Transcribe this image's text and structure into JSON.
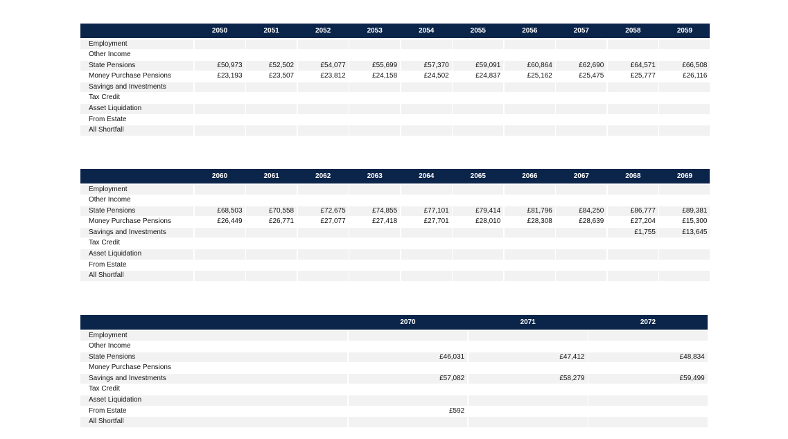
{
  "row_labels": [
    "Employment",
    "Other Income",
    "State Pensions",
    "Money Purchase Pensions",
    "Savings and Investments",
    "Tax Credit",
    "Asset Liquidation",
    "From Estate",
    "All Shortfall"
  ],
  "tables": [
    {
      "years": [
        "2050",
        "2051",
        "2052",
        "2053",
        "2054",
        "2055",
        "2056",
        "2057",
        "2058",
        "2059"
      ],
      "rows": [
        [
          "",
          "",
          "",
          "",
          "",
          "",
          "",
          "",
          "",
          ""
        ],
        [
          "",
          "",
          "",
          "",
          "",
          "",
          "",
          "",
          "",
          ""
        ],
        [
          "£50,973",
          "£52,502",
          "£54,077",
          "£55,699",
          "£57,370",
          "£59,091",
          "£60,864",
          "£62,690",
          "£64,571",
          "£66,508"
        ],
        [
          "£23,193",
          "£23,507",
          "£23,812",
          "£24,158",
          "£24,502",
          "£24,837",
          "£25,162",
          "£25,475",
          "£25,777",
          "£26,116"
        ],
        [
          "",
          "",
          "",
          "",
          "",
          "",
          "",
          "",
          "",
          ""
        ],
        [
          "",
          "",
          "",
          "",
          "",
          "",
          "",
          "",
          "",
          ""
        ],
        [
          "",
          "",
          "",
          "",
          "",
          "",
          "",
          "",
          "",
          ""
        ],
        [
          "",
          "",
          "",
          "",
          "",
          "",
          "",
          "",
          "",
          ""
        ],
        [
          "",
          "",
          "",
          "",
          "",
          "",
          "",
          "",
          "",
          ""
        ]
      ]
    },
    {
      "years": [
        "2060",
        "2061",
        "2062",
        "2063",
        "2064",
        "2065",
        "2066",
        "2067",
        "2068",
        "2069"
      ],
      "rows": [
        [
          "",
          "",
          "",
          "",
          "",
          "",
          "",
          "",
          "",
          ""
        ],
        [
          "",
          "",
          "",
          "",
          "",
          "",
          "",
          "",
          "",
          ""
        ],
        [
          "£68,503",
          "£70,558",
          "£72,675",
          "£74,855",
          "£77,101",
          "£79,414",
          "£81,796",
          "£84,250",
          "£86,777",
          "£89,381"
        ],
        [
          "£26,449",
          "£26,771",
          "£27,077",
          "£27,418",
          "£27,701",
          "£28,010",
          "£28,308",
          "£28,639",
          "£27,204",
          "£15,300"
        ],
        [
          "",
          "",
          "",
          "",
          "",
          "",
          "",
          "",
          "£1,755",
          "£13,645"
        ],
        [
          "",
          "",
          "",
          "",
          "",
          "",
          "",
          "",
          "",
          ""
        ],
        [
          "",
          "",
          "",
          "",
          "",
          "",
          "",
          "",
          "",
          ""
        ],
        [
          "",
          "",
          "",
          "",
          "",
          "",
          "",
          "",
          "",
          ""
        ],
        [
          "",
          "",
          "",
          "",
          "",
          "",
          "",
          "",
          "",
          ""
        ]
      ]
    },
    {
      "years": [
        "2070",
        "2071",
        "2072"
      ],
      "rows": [
        [
          "",
          "",
          ""
        ],
        [
          "",
          "",
          ""
        ],
        [
          "£46,031",
          "£47,412",
          "£48,834"
        ],
        [
          "",
          "",
          ""
        ],
        [
          "£57,082",
          "£58,279",
          "£59,499"
        ],
        [
          "",
          "",
          ""
        ],
        [
          "",
          "",
          ""
        ],
        [
          "£592",
          "",
          ""
        ],
        [
          "",
          "",
          ""
        ]
      ]
    }
  ]
}
